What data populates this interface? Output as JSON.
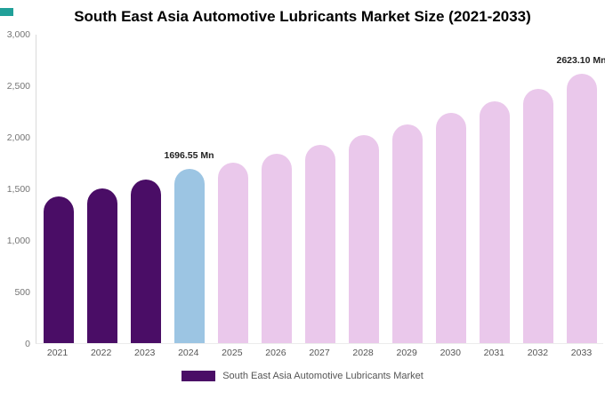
{
  "page": {
    "title": "South East Asia Automotive Lubricants Market Size (2021-2033)"
  },
  "accent": {
    "corner_color": "#21A099"
  },
  "chart_data": {
    "type": "bar",
    "title": "South East Asia Automotive Lubricants Market Size (2021-2033)",
    "xlabel": "",
    "ylabel": "",
    "ylim": [
      0,
      3000
    ],
    "grid": false,
    "legend_position": "bottom",
    "categories": [
      "2021",
      "2022",
      "2023",
      "2024",
      "2025",
      "2026",
      "2027",
      "2028",
      "2029",
      "2030",
      "2031",
      "2032",
      "2033"
    ],
    "values": [
      1430,
      1505,
      1590,
      1696.55,
      1755,
      1840,
      1930,
      2020,
      2125,
      2240,
      2350,
      2470,
      2623.1
    ],
    "unit": "Mn",
    "bar_colors": [
      "#4A0D66",
      "#4A0D66",
      "#4A0D66",
      "#9CC5E3",
      "#EAC8EB",
      "#EAC8EB",
      "#EAC8EB",
      "#EAC8EB",
      "#EAC8EB",
      "#EAC8EB",
      "#EAC8EB",
      "#EAC8EB",
      "#EAC8EB"
    ],
    "data_labels": [
      {
        "index": 3,
        "text": "1696.55 Mn"
      },
      {
        "index": 12,
        "text": "2623.10 Mn"
      }
    ],
    "yticks": [
      {
        "value": 0,
        "label": "0"
      },
      {
        "value": 500,
        "label": "500"
      },
      {
        "value": 1000,
        "label": "1,000"
      },
      {
        "value": 1500,
        "label": "1,500"
      },
      {
        "value": 2000,
        "label": "2,000"
      },
      {
        "value": 2500,
        "label": "2,500"
      },
      {
        "value": 3000,
        "label": "3,000"
      }
    ]
  },
  "legend": {
    "label": "South East Asia Automotive Lubricants Market",
    "swatch_color": "#4A0D66"
  }
}
